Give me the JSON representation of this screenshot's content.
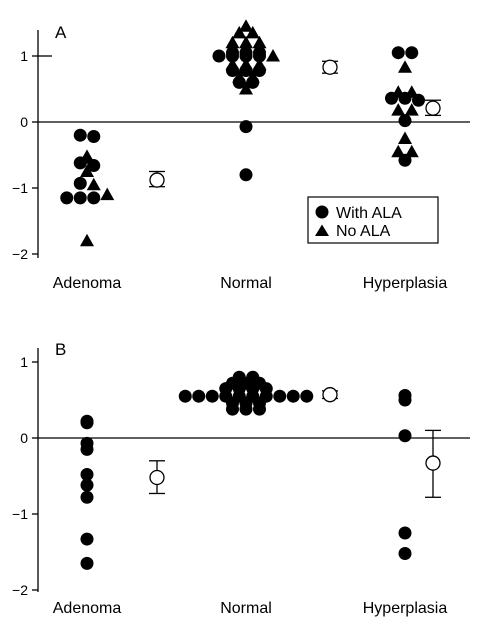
{
  "chart_data": [
    {
      "type": "scatter",
      "panel_label": "A",
      "categories": [
        "Adenoma",
        "Normal",
        "Hyperplasia"
      ],
      "ylim": [
        -2,
        1.5
      ],
      "yticks": [
        "1",
        "0",
        "−1",
        "−2"
      ],
      "ytick_values": [
        1,
        0,
        -1,
        -2
      ],
      "reference_line": 0,
      "legend": {
        "position": "bottom-right",
        "entries": [
          {
            "marker": "circle",
            "label": "With ALA"
          },
          {
            "marker": "triangle",
            "label": "No ALA"
          }
        ]
      },
      "series": [
        {
          "name": "With ALA",
          "marker": "circle",
          "points": [
            {
              "category": "Adenoma",
              "y": -0.2
            },
            {
              "category": "Adenoma",
              "y": -0.22
            },
            {
              "category": "Adenoma",
              "y": -0.62
            },
            {
              "category": "Adenoma",
              "y": -0.66
            },
            {
              "category": "Adenoma",
              "y": -0.93
            },
            {
              "category": "Adenoma",
              "y": -1.15
            },
            {
              "category": "Adenoma",
              "y": -1.15
            },
            {
              "category": "Adenoma",
              "y": -1.15
            },
            {
              "category": "Normal",
              "y": 1.0
            },
            {
              "category": "Normal",
              "y": 1.05
            },
            {
              "category": "Normal",
              "y": 1.05
            },
            {
              "category": "Normal",
              "y": 1.05
            },
            {
              "category": "Normal",
              "y": 1.0
            },
            {
              "category": "Normal",
              "y": 1.0
            },
            {
              "category": "Normal",
              "y": 1.0
            },
            {
              "category": "Normal",
              "y": 0.78
            },
            {
              "category": "Normal",
              "y": 0.78
            },
            {
              "category": "Normal",
              "y": 0.78
            },
            {
              "category": "Normal",
              "y": 0.6
            },
            {
              "category": "Normal",
              "y": 0.6
            },
            {
              "category": "Normal",
              "y": -0.07
            },
            {
              "category": "Normal",
              "y": -0.8
            },
            {
              "category": "Hyperplasia",
              "y": 1.05
            },
            {
              "category": "Hyperplasia",
              "y": 1.05
            },
            {
              "category": "Hyperplasia",
              "y": 0.36
            },
            {
              "category": "Hyperplasia",
              "y": 0.36
            },
            {
              "category": "Hyperplasia",
              "y": 0.33
            },
            {
              "category": "Hyperplasia",
              "y": 0.02
            },
            {
              "category": "Hyperplasia",
              "y": -0.58
            }
          ]
        },
        {
          "name": "No ALA",
          "marker": "triangle",
          "points": [
            {
              "category": "Adenoma",
              "y": -0.55
            },
            {
              "category": "Adenoma",
              "y": -0.52
            },
            {
              "category": "Adenoma",
              "y": -0.75
            },
            {
              "category": "Adenoma",
              "y": -0.95
            },
            {
              "category": "Adenoma",
              "y": -1.1
            },
            {
              "category": "Adenoma",
              "y": -1.8
            },
            {
              "category": "Normal",
              "y": 1.0
            },
            {
              "category": "Normal",
              "y": 1.45
            },
            {
              "category": "Normal",
              "y": 1.35
            },
            {
              "category": "Normal",
              "y": 1.35
            },
            {
              "category": "Normal",
              "y": 1.2
            },
            {
              "category": "Normal",
              "y": 1.2
            },
            {
              "category": "Normal",
              "y": 1.2
            },
            {
              "category": "Normal",
              "y": 0.87
            },
            {
              "category": "Normal",
              "y": 0.87
            },
            {
              "category": "Normal",
              "y": 0.87
            },
            {
              "category": "Normal",
              "y": 0.68
            },
            {
              "category": "Normal",
              "y": 0.68
            },
            {
              "category": "Normal",
              "y": 0.5
            },
            {
              "category": "Hyperplasia",
              "y": 0.83
            },
            {
              "category": "Hyperplasia",
              "y": 0.45
            },
            {
              "category": "Hyperplasia",
              "y": 0.45
            },
            {
              "category": "Hyperplasia",
              "y": 0.18
            },
            {
              "category": "Hyperplasia",
              "y": 0.18
            },
            {
              "category": "Hyperplasia",
              "y": -0.25
            },
            {
              "category": "Hyperplasia",
              "y": -0.45
            },
            {
              "category": "Hyperplasia",
              "y": -0.45
            }
          ]
        }
      ],
      "summary": [
        {
          "category": "Adenoma",
          "mean": -0.88,
          "err_low": -0.98,
          "err_high": -0.75
        },
        {
          "category": "Normal",
          "mean": 0.83,
          "err_low": 0.74,
          "err_high": 0.92
        },
        {
          "category": "Hyperplasia",
          "mean": 0.21,
          "err_low": 0.1,
          "err_high": 0.33
        }
      ]
    },
    {
      "type": "scatter",
      "panel_label": "B",
      "categories": [
        "Adenoma",
        "Normal",
        "Hyperplasia"
      ],
      "ylim": [
        -2,
        1.2
      ],
      "yticks": [
        "1",
        "0",
        "−1",
        "−2"
      ],
      "ytick_values": [
        1,
        0,
        -1,
        -2
      ],
      "reference_line": 0,
      "series": [
        {
          "name": "With ALA",
          "marker": "circle",
          "points": [
            {
              "category": "Adenoma",
              "y": 0.22
            },
            {
              "category": "Adenoma",
              "y": 0.2
            },
            {
              "category": "Adenoma",
              "y": -0.07
            },
            {
              "category": "Adenoma",
              "y": -0.15
            },
            {
              "category": "Adenoma",
              "y": -0.48
            },
            {
              "category": "Adenoma",
              "y": -0.62
            },
            {
              "category": "Adenoma",
              "y": -0.78
            },
            {
              "category": "Adenoma",
              "y": -1.33
            },
            {
              "category": "Adenoma",
              "y": -1.65
            },
            {
              "category": "Normal",
              "y": 0.8
            },
            {
              "category": "Normal",
              "y": 0.8
            },
            {
              "category": "Normal",
              "y": 0.72
            },
            {
              "category": "Normal",
              "y": 0.72
            },
            {
              "category": "Normal",
              "y": 0.72
            },
            {
              "category": "Normal",
              "y": 0.65
            },
            {
              "category": "Normal",
              "y": 0.65
            },
            {
              "category": "Normal",
              "y": 0.65
            },
            {
              "category": "Normal",
              "y": 0.65
            },
            {
              "category": "Normal",
              "y": 0.55
            },
            {
              "category": "Normal",
              "y": 0.55
            },
            {
              "category": "Normal",
              "y": 0.55
            },
            {
              "category": "Normal",
              "y": 0.55
            },
            {
              "category": "Normal",
              "y": 0.55
            },
            {
              "category": "Normal",
              "y": 0.55
            },
            {
              "category": "Normal",
              "y": 0.55
            },
            {
              "category": "Normal",
              "y": 0.55
            },
            {
              "category": "Normal",
              "y": 0.55
            },
            {
              "category": "Normal",
              "y": 0.55
            },
            {
              "category": "Normal",
              "y": 0.46
            },
            {
              "category": "Normal",
              "y": 0.46
            },
            {
              "category": "Normal",
              "y": 0.46
            },
            {
              "category": "Normal",
              "y": 0.38
            },
            {
              "category": "Normal",
              "y": 0.38
            },
            {
              "category": "Normal",
              "y": 0.38
            },
            {
              "category": "Hyperplasia",
              "y": 0.56
            },
            {
              "category": "Hyperplasia",
              "y": 0.5
            },
            {
              "category": "Hyperplasia",
              "y": 0.03
            },
            {
              "category": "Hyperplasia",
              "y": -1.25
            },
            {
              "category": "Hyperplasia",
              "y": -1.52
            }
          ]
        }
      ],
      "summary": [
        {
          "category": "Adenoma",
          "mean": -0.52,
          "err_low": -0.73,
          "err_high": -0.3
        },
        {
          "category": "Normal",
          "mean": 0.57,
          "err_low": 0.52,
          "err_high": 0.62
        },
        {
          "category": "Hyperplasia",
          "mean": -0.33,
          "err_low": -0.78,
          "err_high": 0.1
        }
      ]
    }
  ]
}
